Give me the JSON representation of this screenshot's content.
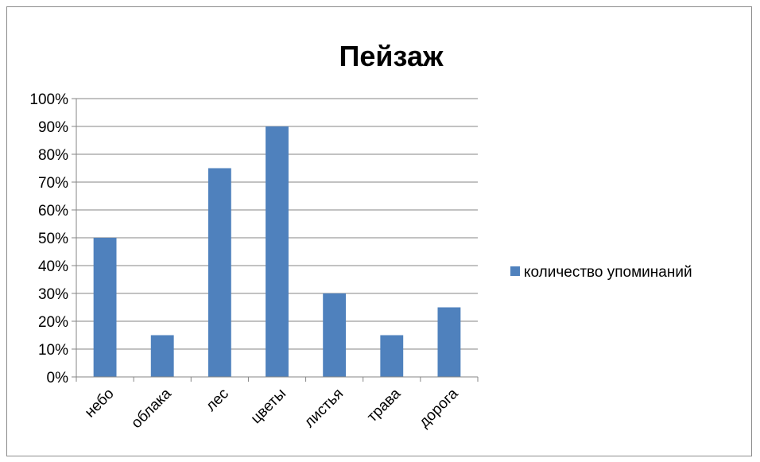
{
  "colors": {
    "bar": "#4f81bd",
    "grid": "#868686",
    "axis": "#868686",
    "frame": "#8c8c8c",
    "text": "#000000"
  },
  "chart_data": {
    "type": "bar",
    "title": "Пейзаж",
    "xlabel": "",
    "ylabel": "",
    "categories": [
      "небо",
      "облака",
      "лес",
      "цветы",
      "листья",
      "трава",
      "дорога"
    ],
    "series": [
      {
        "name": "количество упоминаний",
        "values": [
          50,
          15,
          75,
          90,
          30,
          15,
          25
        ]
      }
    ],
    "y_ticks": [
      "0%",
      "10%",
      "20%",
      "30%",
      "40%",
      "50%",
      "60%",
      "70%",
      "80%",
      "90%",
      "100%"
    ],
    "ylim": [
      0,
      100
    ],
    "y_unit": "%",
    "grid": true,
    "legend_position": "right"
  }
}
